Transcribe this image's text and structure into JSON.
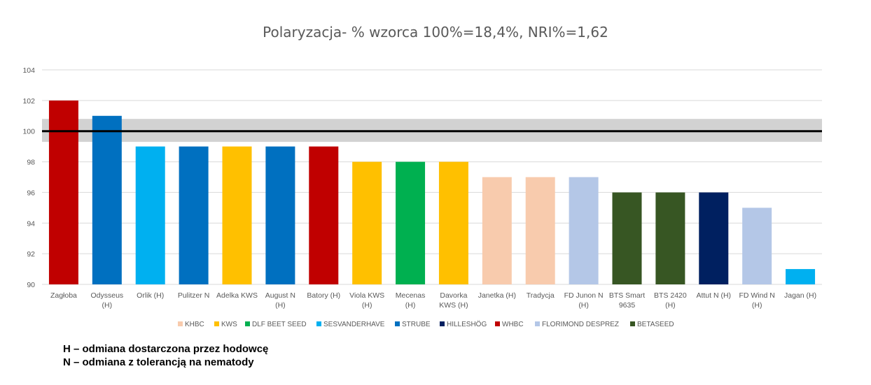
{
  "chart_data": {
    "type": "bar",
    "title": "Polaryzacja- % wzorca 100%=18,4%, NRI%=1,62",
    "xlabel": "",
    "ylabel": "",
    "ylim": [
      90,
      104
    ],
    "yticks": [
      90,
      92,
      94,
      96,
      98,
      100,
      102,
      104
    ],
    "grid": true,
    "reference_line": 100,
    "reference_band": [
      99.3,
      100.8
    ],
    "legend_position": "bottom",
    "categories": [
      [
        "Zagłoba"
      ],
      [
        "Odysseus",
        "(H)"
      ],
      [
        "Orlik (H)"
      ],
      [
        "Pulitzer  N"
      ],
      [
        "Adelka KWS"
      ],
      [
        "August N",
        "(H)"
      ],
      [
        "Batory (H)"
      ],
      [
        "Viola KWS",
        "(H)"
      ],
      [
        "Mecenas",
        "(H)"
      ],
      [
        "Davorka",
        "KWS (H)"
      ],
      [
        "Janetka (H)"
      ],
      [
        "Tradycja"
      ],
      [
        "FD Junon  N",
        "(H)"
      ],
      [
        "BTS Smart",
        "9635"
      ],
      [
        "BTS 2420",
        "(H)"
      ],
      [
        "Attut  N (H)"
      ],
      [
        "FD Wind  N",
        "(H)"
      ],
      [
        "Jagan (H)"
      ]
    ],
    "values": [
      102,
      101,
      99,
      99,
      99,
      99,
      99,
      98,
      98,
      98,
      97,
      97,
      97,
      96,
      96,
      96,
      95,
      91
    ],
    "breeders": [
      "WHBC",
      "STRUBE",
      "SESVANDERHAVE",
      "STRUBE",
      "KWS",
      "STRUBE",
      "WHBC",
      "KWS",
      "DLF BEET SEED",
      "KWS",
      "KHBC",
      "KHBC",
      "FLORIMOND DESPREZ",
      "BETASEED",
      "BETASEED",
      "HILLESHÖG",
      "FLORIMOND DESPREZ",
      "SESVANDERHAVE"
    ],
    "legend": [
      {
        "name": "KHBC",
        "color": "#F8CBAD"
      },
      {
        "name": "KWS",
        "color": "#FFC000"
      },
      {
        "name": "DLF BEET SEED",
        "color": "#00B050"
      },
      {
        "name": "SESVANDERHAVE",
        "color": "#00B0F0"
      },
      {
        "name": "STRUBE",
        "color": "#0070C0"
      },
      {
        "name": "HILLESHÖG",
        "color": "#002060"
      },
      {
        "name": "WHBC",
        "color": "#C00000"
      },
      {
        "name": "FLORIMOND DESPREZ",
        "color": "#B4C7E7"
      },
      {
        "name": "BETASEED",
        "color": "#375623"
      }
    ]
  },
  "notes": {
    "line1": "H – odmiana dostarczona przez hodowcę",
    "line2": "N – odmiana z tolerancją na nematody"
  }
}
